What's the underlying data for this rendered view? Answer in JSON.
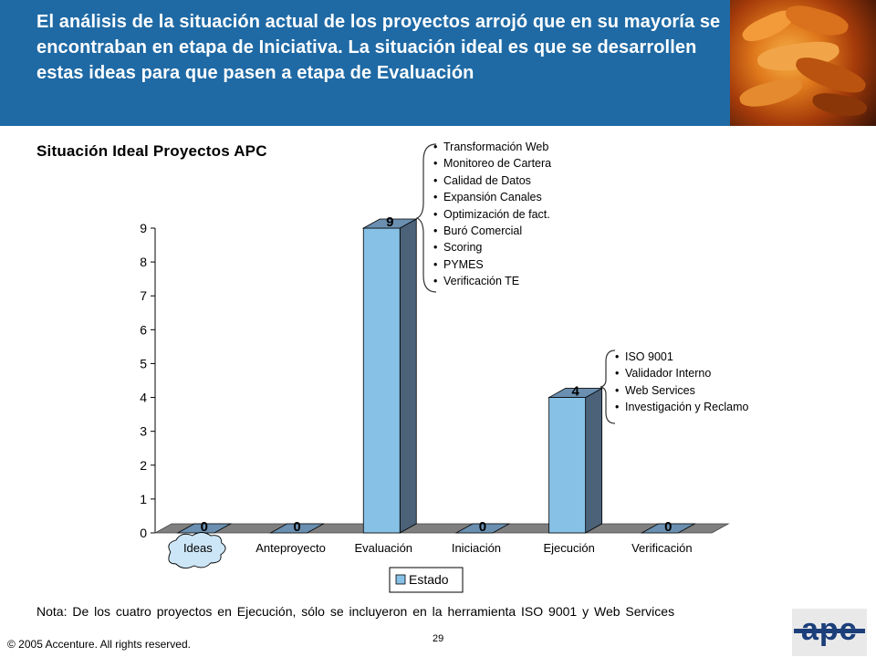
{
  "slide": {
    "title": "El análisis de la situación actual de los proyectos arrojó que en su mayoría se encontraban en etapa de Iniciativa. La situación ideal es que se desarrollen estas ideas para que pasen a etapa de Evaluación",
    "subtitle": "Situación Ideal Proyectos APC",
    "note": "Nota: De los cuatro proyectos en Ejecución, sólo se incluyeron en la herramienta ISO 9001 y Web Services",
    "copyright": "© 2005 Accenture. All rights reserved.",
    "page_number": "29",
    "logo_text": "apc"
  },
  "evaluacion_projects": [
    "Transformación Web",
    "Monitoreo de Cartera",
    "Calidad de Datos",
    "Expansión Canales",
    "Optimización de fact.",
    "Buró Comercial",
    "Scoring",
    "PYMES",
    "Verificación TE"
  ],
  "ejecucion_projects": [
    "ISO 9001",
    "Validador Interno",
    "Web Services",
    "Investigación y Reclamo"
  ],
  "chart_data": {
    "type": "bar",
    "categories": [
      "Ideas",
      "Anteproyecto",
      "Evaluación",
      "Iniciación",
      "Ejecución",
      "Verificación"
    ],
    "series": [
      {
        "name": "Estado",
        "values": [
          0,
          0,
          9,
          0,
          4,
          0
        ]
      }
    ],
    "data_labels": [
      "0",
      "0",
      "9",
      "0",
      "4",
      "0"
    ],
    "ylim": [
      0,
      9
    ],
    "yticks": [
      0,
      1,
      2,
      3,
      4,
      5,
      6,
      7,
      8,
      9
    ],
    "highlighted_category": "Ideas",
    "legend_position": "bottom",
    "grid": false,
    "three_d": true
  },
  "colors": {
    "header_bg": "#1f6aa5",
    "bar_front": "#87c1e6",
    "bar_side": "#4b6279",
    "bar_top": "#6a8fb0",
    "floor": "#7f7f7f",
    "cloud_fill": "#cde6f7"
  }
}
